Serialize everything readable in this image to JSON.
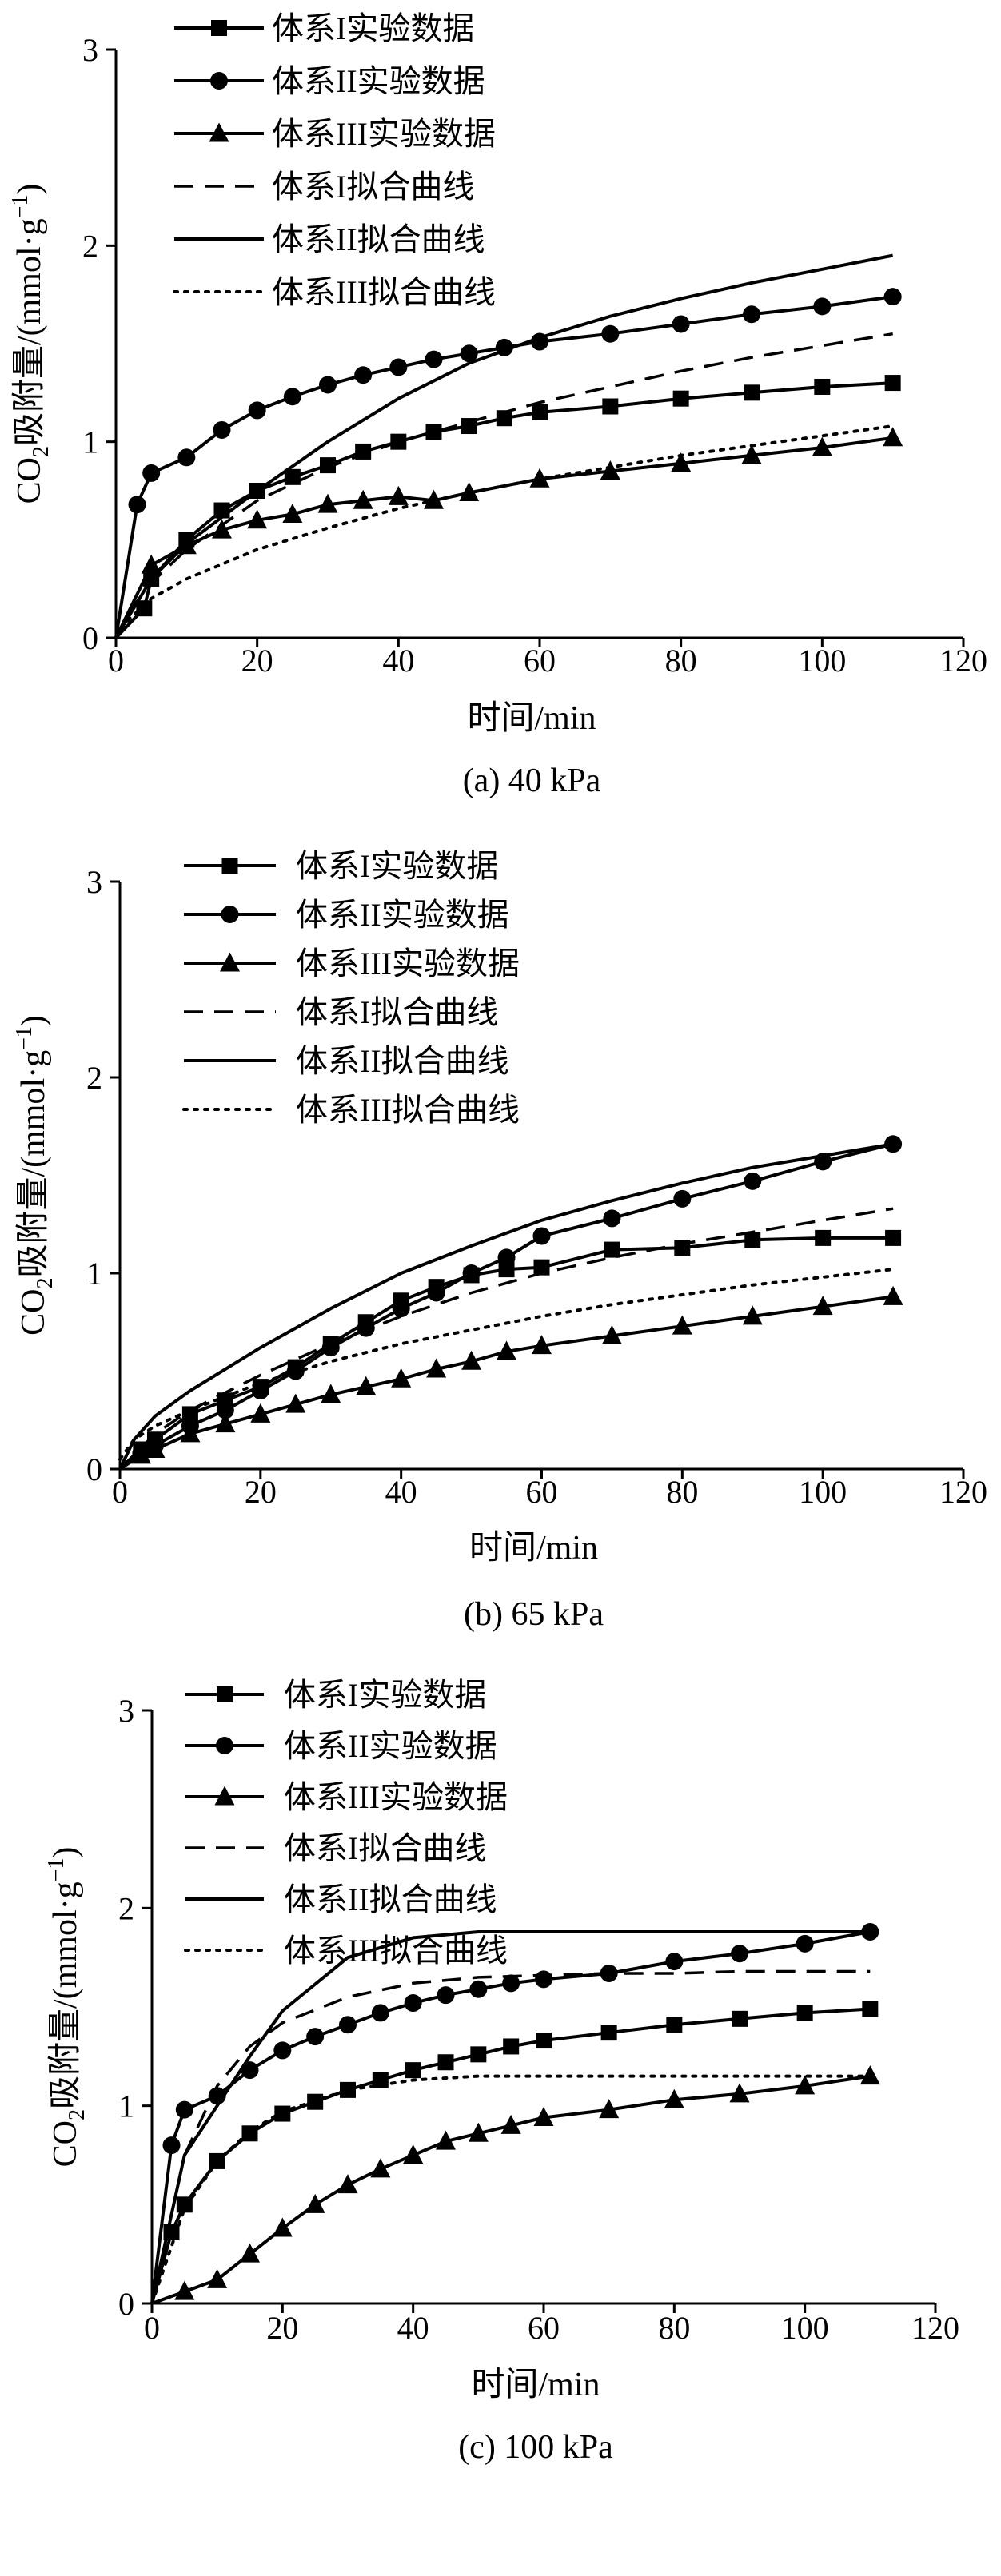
{
  "chart_data": [
    {
      "type": "line",
      "title": "(a) 40 kPa",
      "xlabel": "时间/min",
      "ylabel_main": "CO",
      "ylabel_sub": "2",
      "ylabel_rest": "吸附量/(mmol·g",
      "ylabel_sup": "−1",
      "ylabel_close": ")",
      "xlim": [
        0,
        120
      ],
      "ylim": [
        0,
        3
      ],
      "xticks": [
        "0",
        "20",
        "40",
        "60",
        "80",
        "100",
        "120"
      ],
      "yticks": [
        "0",
        "1",
        "2",
        "3"
      ],
      "legend_position": "top-left",
      "series": [
        {
          "name": "体系I实验数据",
          "marker": "square",
          "line": "solid",
          "x": [
            0,
            4,
            5,
            10,
            15,
            20,
            25,
            30,
            35,
            40,
            45,
            50,
            55,
            60,
            70,
            80,
            90,
            100,
            110
          ],
          "y": [
            0,
            0.15,
            0.3,
            0.5,
            0.65,
            0.75,
            0.82,
            0.88,
            0.95,
            1.0,
            1.05,
            1.08,
            1.12,
            1.15,
            1.18,
            1.22,
            1.25,
            1.28,
            1.3
          ]
        },
        {
          "name": "体系II实验数据",
          "marker": "circle",
          "line": "solid",
          "x": [
            0,
            3,
            5,
            10,
            15,
            20,
            25,
            30,
            35,
            40,
            45,
            50,
            55,
            60,
            70,
            80,
            90,
            100,
            110
          ],
          "y": [
            0,
            0.68,
            0.84,
            0.92,
            1.06,
            1.16,
            1.23,
            1.29,
            1.34,
            1.38,
            1.42,
            1.45,
            1.48,
            1.51,
            1.55,
            1.6,
            1.65,
            1.69,
            1.74
          ]
        },
        {
          "name": "体系III实验数据",
          "marker": "triangle",
          "line": "solid",
          "x": [
            0,
            5,
            10,
            15,
            20,
            25,
            30,
            35,
            40,
            45,
            50,
            60,
            70,
            80,
            90,
            100,
            110
          ],
          "y": [
            0,
            0.37,
            0.47,
            0.55,
            0.6,
            0.63,
            0.68,
            0.7,
            0.72,
            0.7,
            0.74,
            0.81,
            0.85,
            0.89,
            0.93,
            0.97,
            1.02
          ]
        },
        {
          "name": "体系I拟合曲线",
          "marker": "none",
          "line": "dashed",
          "x": [
            0,
            2,
            5,
            10,
            20,
            30,
            40,
            50,
            60,
            70,
            80,
            90,
            100,
            110
          ],
          "y": [
            0,
            0.14,
            0.28,
            0.45,
            0.7,
            0.87,
            1.0,
            1.1,
            1.2,
            1.28,
            1.36,
            1.43,
            1.49,
            1.55
          ]
        },
        {
          "name": "体系II拟合曲线",
          "marker": "none",
          "line": "solid",
          "x": [
            0,
            5,
            10,
            20,
            30,
            40,
            50,
            60,
            70,
            80,
            90,
            100,
            110
          ],
          "y": [
            0,
            0.3,
            0.48,
            0.75,
            1.0,
            1.22,
            1.4,
            1.53,
            1.64,
            1.73,
            1.81,
            1.88,
            1.95
          ]
        },
        {
          "name": "体系III拟合曲线",
          "marker": "none",
          "line": "dotted",
          "x": [
            0,
            2,
            5,
            10,
            20,
            30,
            40,
            50,
            60,
            70,
            80,
            90,
            100,
            110
          ],
          "y": [
            0,
            0.1,
            0.2,
            0.3,
            0.45,
            0.56,
            0.66,
            0.74,
            0.81,
            0.87,
            0.93,
            0.98,
            1.03,
            1.08
          ]
        }
      ]
    },
    {
      "type": "line",
      "title": "(b) 65 kPa",
      "xlabel": "时间/min",
      "ylabel_main": "CO",
      "ylabel_sub": "2",
      "ylabel_rest": "吸附量/(mmol·g",
      "ylabel_sup": "−1",
      "ylabel_close": ")",
      "xlim": [
        0,
        120
      ],
      "ylim": [
        0,
        3
      ],
      "xticks": [
        "0",
        "20",
        "40",
        "60",
        "80",
        "100",
        "120"
      ],
      "yticks": [
        "0",
        "1",
        "2",
        "3"
      ],
      "legend_position": "top-left",
      "series": [
        {
          "name": "体系I实验数据",
          "marker": "square",
          "line": "solid",
          "x": [
            0,
            3,
            5,
            10,
            15,
            20,
            25,
            30,
            35,
            40,
            45,
            50,
            55,
            60,
            70,
            80,
            90,
            100,
            110
          ],
          "y": [
            0,
            0.1,
            0.15,
            0.28,
            0.35,
            0.42,
            0.52,
            0.64,
            0.75,
            0.86,
            0.93,
            0.99,
            1.02,
            1.03,
            1.12,
            1.13,
            1.17,
            1.18,
            1.18
          ]
        },
        {
          "name": "体系II实验数据",
          "marker": "circle",
          "line": "solid",
          "x": [
            0,
            3,
            5,
            10,
            15,
            20,
            25,
            30,
            35,
            40,
            45,
            50,
            55,
            60,
            70,
            80,
            90,
            100,
            110
          ],
          "y": [
            0,
            0.08,
            0.12,
            0.22,
            0.3,
            0.4,
            0.5,
            0.62,
            0.72,
            0.82,
            0.9,
            1.0,
            1.08,
            1.19,
            1.28,
            1.38,
            1.47,
            1.57,
            1.66
          ]
        },
        {
          "name": "体系III实验数据",
          "marker": "triangle",
          "line": "solid",
          "x": [
            0,
            3,
            5,
            10,
            15,
            20,
            25,
            30,
            35,
            40,
            45,
            50,
            55,
            60,
            70,
            80,
            90,
            100,
            110
          ],
          "y": [
            0,
            0.07,
            0.1,
            0.18,
            0.23,
            0.28,
            0.33,
            0.38,
            0.42,
            0.46,
            0.51,
            0.55,
            0.6,
            0.63,
            0.68,
            0.73,
            0.78,
            0.83,
            0.88
          ]
        },
        {
          "name": "体系I拟合曲线",
          "marker": "none",
          "line": "dashed",
          "x": [
            0,
            5,
            10,
            20,
            30,
            40,
            50,
            60,
            70,
            80,
            90,
            100,
            110
          ],
          "y": [
            0,
            0.18,
            0.3,
            0.48,
            0.64,
            0.78,
            0.9,
            1.0,
            1.08,
            1.15,
            1.21,
            1.27,
            1.33
          ]
        },
        {
          "name": "体系II拟合曲线",
          "marker": "none",
          "line": "solid",
          "x": [
            0,
            2,
            5,
            10,
            20,
            30,
            40,
            50,
            60,
            70,
            80,
            90,
            100,
            110
          ],
          "y": [
            0,
            0.15,
            0.27,
            0.4,
            0.62,
            0.82,
            1.0,
            1.14,
            1.27,
            1.37,
            1.46,
            1.54,
            1.6,
            1.66
          ]
        },
        {
          "name": "体系III拟合曲线",
          "marker": "none",
          "line": "dotted",
          "x": [
            0,
            2,
            5,
            10,
            20,
            30,
            40,
            50,
            60,
            70,
            80,
            90,
            100,
            110
          ],
          "y": [
            0.05,
            0.15,
            0.22,
            0.3,
            0.44,
            0.55,
            0.64,
            0.71,
            0.78,
            0.84,
            0.89,
            0.94,
            0.98,
            1.02
          ]
        }
      ]
    },
    {
      "type": "line",
      "title": "(c) 100 kPa",
      "xlabel": "时间/min",
      "ylabel_main": "CO",
      "ylabel_sub": "2",
      "ylabel_rest": "吸附量/(mmol·g",
      "ylabel_sup": "−1",
      "ylabel_close": ")",
      "xlim": [
        0,
        120
      ],
      "ylim": [
        0,
        3
      ],
      "xticks": [
        "0",
        "20",
        "40",
        "60",
        "80",
        "100",
        "120"
      ],
      "yticks": [
        "0",
        "1",
        "2",
        "3"
      ],
      "legend_position": "top-left",
      "series": [
        {
          "name": "体系I实验数据",
          "marker": "square",
          "line": "solid",
          "x": [
            0,
            3,
            5,
            10,
            15,
            20,
            25,
            30,
            35,
            40,
            45,
            50,
            55,
            60,
            70,
            80,
            90,
            100,
            110
          ],
          "y": [
            0,
            0.36,
            0.5,
            0.72,
            0.86,
            0.96,
            1.02,
            1.08,
            1.13,
            1.18,
            1.22,
            1.26,
            1.3,
            1.33,
            1.37,
            1.41,
            1.44,
            1.47,
            1.49
          ]
        },
        {
          "name": "体系II实验数据",
          "marker": "circle",
          "line": "solid",
          "x": [
            0,
            3,
            5,
            10,
            15,
            20,
            25,
            30,
            35,
            40,
            45,
            50,
            55,
            60,
            70,
            80,
            90,
            100,
            110
          ],
          "y": [
            0,
            0.8,
            0.98,
            1.05,
            1.18,
            1.28,
            1.35,
            1.41,
            1.47,
            1.52,
            1.56,
            1.59,
            1.62,
            1.64,
            1.67,
            1.73,
            1.77,
            1.82,
            1.88
          ]
        },
        {
          "name": "体系III实验数据",
          "marker": "triangle",
          "line": "solid",
          "x": [
            0,
            5,
            10,
            15,
            20,
            25,
            30,
            35,
            40,
            45,
            50,
            55,
            60,
            70,
            80,
            90,
            100,
            110
          ],
          "y": [
            0,
            0.06,
            0.12,
            0.25,
            0.38,
            0.5,
            0.6,
            0.68,
            0.75,
            0.82,
            0.86,
            0.9,
            0.94,
            0.98,
            1.03,
            1.06,
            1.1,
            1.15
          ]
        },
        {
          "name": "体系I拟合曲线",
          "marker": "none",
          "line": "dashed",
          "x": [
            0,
            5,
            10,
            15,
            20,
            30,
            40,
            50,
            60,
            70,
            80,
            90,
            100,
            110
          ],
          "y": [
            0,
            0.75,
            1.1,
            1.3,
            1.42,
            1.55,
            1.62,
            1.65,
            1.66,
            1.67,
            1.67,
            1.68,
            1.68,
            1.68
          ]
        },
        {
          "name": "体系II拟合曲线",
          "marker": "none",
          "line": "solid",
          "x": [
            0,
            5,
            10,
            15,
            20,
            30,
            40,
            50,
            60,
            70,
            80,
            90,
            100,
            110
          ],
          "y": [
            0,
            0.75,
            1.0,
            1.25,
            1.48,
            1.75,
            1.85,
            1.88,
            1.88,
            1.88,
            1.88,
            1.88,
            1.88,
            1.88
          ]
        },
        {
          "name": "体系III拟合曲线",
          "marker": "none",
          "line": "dotted",
          "x": [
            0,
            5,
            10,
            15,
            20,
            30,
            40,
            50,
            60,
            70,
            80,
            90,
            100,
            110
          ],
          "y": [
            0,
            0.48,
            0.72,
            0.87,
            0.97,
            1.08,
            1.13,
            1.15,
            1.15,
            1.15,
            1.15,
            1.15,
            1.15,
            1.15
          ]
        }
      ]
    }
  ]
}
